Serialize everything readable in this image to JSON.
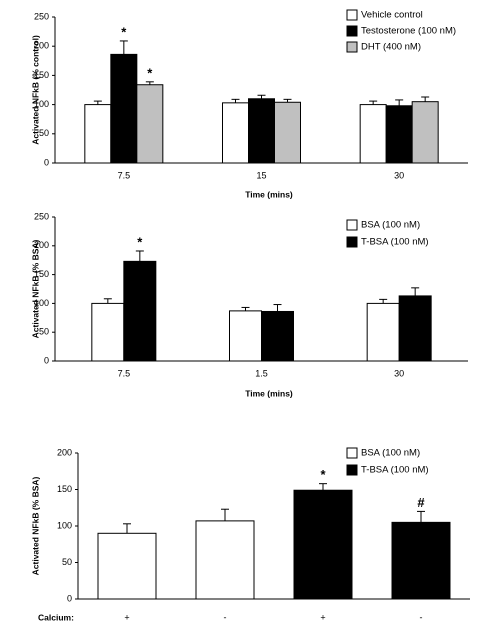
{
  "chart_data": [
    {
      "type": "bar",
      "x_label": "Time (mins)",
      "y_label": "Activated NFkB (% control)",
      "categories": [
        "7.5",
        "15",
        "30"
      ],
      "series": [
        {
          "name": "Vehicle control",
          "color": "#ffffff",
          "values": [
            100,
            103,
            100
          ],
          "errors": [
            6,
            6,
            6
          ],
          "annotations": [
            null,
            null,
            null
          ]
        },
        {
          "name": "Testosterone (100 nM)",
          "color": "#000000",
          "values": [
            186,
            110,
            98
          ],
          "errors": [
            23,
            6,
            10
          ],
          "annotations": [
            "*",
            null,
            null
          ]
        },
        {
          "name": "DHT (400 nM)",
          "color": "#c0c0c0",
          "values": [
            134,
            104,
            105
          ],
          "errors": [
            5,
            5,
            8
          ],
          "annotations": [
            "*",
            null,
            null
          ]
        }
      ],
      "ylim": [
        0,
        250
      ],
      "yticks": [
        0,
        50,
        100,
        150,
        200,
        250
      ],
      "grid": false,
      "legend": "upper right"
    },
    {
      "type": "bar",
      "x_label": "Time (mins)",
      "y_label": "Activated NFkB (% BSA)",
      "categories": [
        "7.5",
        "1.5",
        "30"
      ],
      "series": [
        {
          "name": "BSA (100 nM)",
          "color": "#ffffff",
          "values": [
            100,
            87,
            100
          ],
          "errors": [
            8,
            6,
            7
          ],
          "annotations": [
            null,
            null,
            null
          ]
        },
        {
          "name": "T-BSA (100 nM)",
          "color": "#000000",
          "values": [
            173,
            86,
            113
          ],
          "errors": [
            18,
            12,
            14
          ],
          "annotations": [
            "*",
            null,
            null
          ]
        }
      ],
      "ylim": [
        0,
        250
      ],
      "yticks": [
        0,
        50,
        100,
        150,
        200,
        250
      ],
      "grid": false,
      "legend": "upper right"
    },
    {
      "type": "bar",
      "x_label": "Calcium:",
      "y_label": "Activated NFkB (% BSA)",
      "categories": [
        "+",
        "-",
        "+",
        "-"
      ],
      "series": [
        {
          "name": "BSA (100 nM)",
          "color": "#ffffff",
          "values": [
            90,
            107,
            null,
            null
          ],
          "errors": [
            13,
            16,
            null,
            null
          ],
          "annotations": [
            null,
            null,
            null,
            null
          ]
        },
        {
          "name": "T-BSA (100 nM)",
          "color": "#000000",
          "values": [
            null,
            null,
            149,
            105
          ],
          "errors": [
            null,
            null,
            9,
            15
          ],
          "annotations": [
            null,
            null,
            "*",
            "#"
          ]
        }
      ],
      "ylim": [
        0,
        200
      ],
      "yticks": [
        0,
        50,
        100,
        150,
        200
      ],
      "grid": false,
      "legend": "upper right"
    }
  ]
}
